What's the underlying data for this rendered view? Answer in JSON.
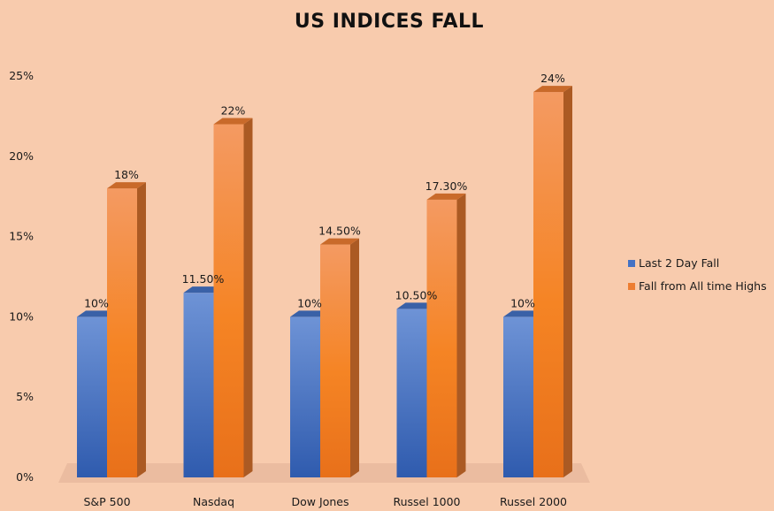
{
  "chart_data": {
    "type": "bar",
    "title": "US INDICES FALL",
    "categories": [
      "S&P 500",
      "Nasdaq",
      "Dow Jones",
      "Russel 1000",
      "Russel 2000"
    ],
    "series": [
      {
        "name": "Last 2 Day Fall",
        "values": [
          10,
          11.5,
          10,
          10.5,
          10
        ],
        "labels": [
          "10%",
          "11.50%",
          "10%",
          "10.50%",
          "10%"
        ],
        "color": "#4472C4"
      },
      {
        "name": "Fall from All time Highs",
        "values": [
          18,
          22,
          14.5,
          17.3,
          24
        ],
        "labels": [
          "18%",
          "22%",
          "14.50%",
          "17.30%",
          "24%"
        ],
        "color": "#ED7D31"
      }
    ],
    "ylim": [
      0,
      25
    ],
    "yticks": [
      0,
      5,
      10,
      15,
      20,
      25
    ],
    "ytick_labels": [
      "0%",
      "5%",
      "10%",
      "15%",
      "20%",
      "25%"
    ],
    "xlabel": "",
    "ylabel": "",
    "legend_position": "right",
    "grid": false,
    "style": "3d"
  }
}
